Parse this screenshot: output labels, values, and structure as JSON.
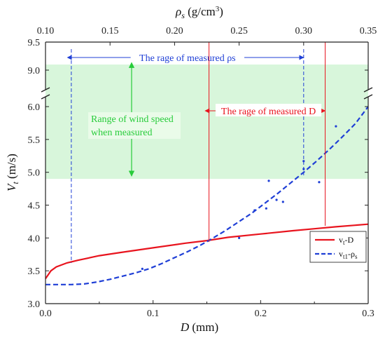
{
  "chart_data": {
    "type": "line",
    "x_axis": {
      "label": "D (mm)",
      "range": [
        0.0,
        0.3
      ],
      "ticks": [
        0.0,
        0.1,
        0.2,
        0.3
      ],
      "tick_labels": [
        "0.0",
        "0.1",
        "0.2",
        "0.3"
      ]
    },
    "x2_axis": {
      "label": "ρs (g/cm3)",
      "range": [
        0.1,
        0.35
      ],
      "ticks": [
        0.1,
        0.15,
        0.2,
        0.25,
        0.3,
        0.35
      ],
      "tick_labels": [
        "0.10",
        "0.15",
        "0.20",
        "0.25",
        "0.30",
        "0.35"
      ]
    },
    "y_axis": {
      "label": "Vt (m/s)",
      "range": [
        3.0,
        9.5
      ],
      "break": [
        6.15,
        8.65
      ],
      "ticks": [
        3.0,
        3.5,
        4.0,
        4.5,
        5.0,
        5.5,
        6.0,
        9.0,
        9.5
      ],
      "tick_labels": [
        "3.0",
        "3.5",
        "4.0",
        "4.5",
        "5.0",
        "5.5",
        "6.0",
        "9.0",
        "9.5"
      ]
    },
    "series": [
      {
        "name": "vt-D",
        "style": "solid",
        "color": "#e8141e",
        "axis": "x",
        "x": [
          0.0,
          0.005,
          0.01,
          0.02,
          0.03,
          0.05,
          0.07,
          0.1,
          0.13,
          0.15,
          0.17,
          0.2,
          0.23,
          0.25,
          0.27,
          0.3
        ],
        "y": [
          3.38,
          3.5,
          3.56,
          3.62,
          3.66,
          3.73,
          3.78,
          3.85,
          3.92,
          3.96,
          4.01,
          4.06,
          4.11,
          4.14,
          4.17,
          4.21
        ]
      },
      {
        "name": "vt1-ρs",
        "style": "dashed",
        "color": "#1f3fd6",
        "axis": "x2",
        "x": [
          0.1,
          0.11,
          0.12,
          0.13,
          0.14,
          0.15,
          0.16,
          0.17,
          0.18,
          0.19,
          0.2,
          0.21,
          0.22,
          0.23,
          0.24,
          0.25,
          0.26,
          0.27,
          0.28,
          0.29,
          0.3,
          0.31,
          0.32,
          0.33,
          0.34,
          0.35
        ],
        "y": [
          3.29,
          3.29,
          3.29,
          3.3,
          3.33,
          3.37,
          3.42,
          3.47,
          3.53,
          3.61,
          3.7,
          3.79,
          3.89,
          4.0,
          4.12,
          4.25,
          4.38,
          4.53,
          4.68,
          4.84,
          5.0,
          5.17,
          5.35,
          5.54,
          5.74,
          6.0
        ]
      }
    ],
    "scatter_points": {
      "color": "#1f3fd6",
      "axis": "x2",
      "x": [
        0.175,
        0.25,
        0.262,
        0.271,
        0.273,
        0.279,
        0.284,
        0.3,
        0.3,
        0.312,
        0.325
      ],
      "y": [
        3.53,
        4.0,
        4.42,
        4.45,
        4.87,
        4.58,
        4.55,
        5.17,
        5.05,
        4.85,
        5.7
      ]
    },
    "shaded_band": {
      "label_lines": [
        "Range of wind speed",
        "when measured"
      ],
      "y_range": [
        4.9,
        9.1
      ],
      "color": "#27cc3a"
    },
    "annotations": {
      "rho_range": {
        "text": "The rage of measured ρs",
        "x2_range": [
          0.12,
          0.3
        ],
        "color": "#1f3fd6"
      },
      "d_range": {
        "text": "The rage of measured D",
        "x_range": [
          0.152,
          0.26
        ],
        "color": "#e8141e"
      }
    },
    "legend": {
      "position": "bottom-right",
      "entries": [
        "vt-D",
        "vt1-ρs"
      ]
    },
    "grid": false
  }
}
